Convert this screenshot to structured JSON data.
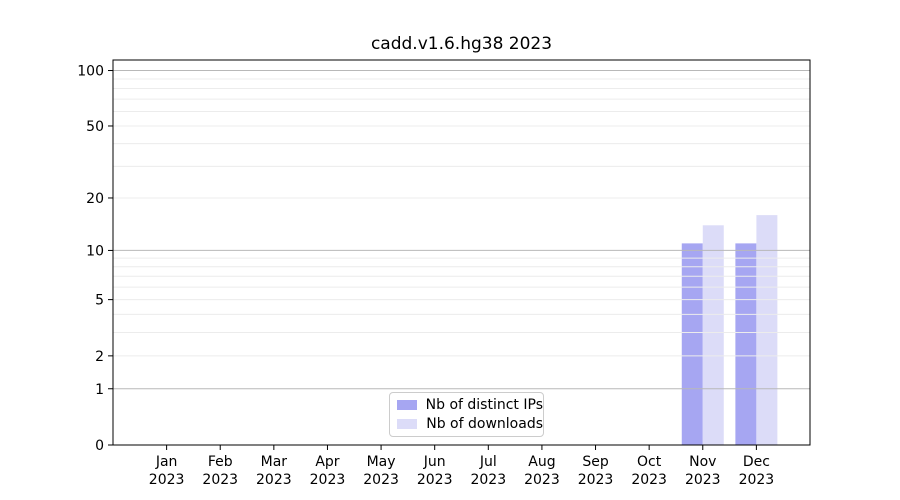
{
  "chart_data": {
    "type": "bar",
    "title": "cadd.v1.6.hg38 2023",
    "xlabel": "",
    "ylabel": "",
    "categories": [
      "Jan",
      "Feb",
      "Mar",
      "Apr",
      "May",
      "Jun",
      "Jul",
      "Aug",
      "Sep",
      "Oct",
      "Nov",
      "Dec"
    ],
    "year_line": "2023",
    "series": [
      {
        "name": "Nb of distinct IPs",
        "color": "#a6a6f2",
        "values": [
          0,
          0,
          0,
          0,
          0,
          0,
          0,
          0,
          0,
          0,
          11,
          11
        ]
      },
      {
        "name": "Nb of downloads",
        "color": "#dcdcf8",
        "values": [
          0,
          0,
          0,
          0,
          0,
          0,
          0,
          0,
          0,
          0,
          14,
          16
        ]
      }
    ],
    "yscale": "log1p",
    "ylim": [
      0,
      114
    ],
    "yticks": [
      0,
      1,
      2,
      5,
      10,
      20,
      50,
      100
    ],
    "grid": {
      "major_values": [
        1,
        10,
        100
      ],
      "minor_values": [
        2,
        3,
        4,
        5,
        6,
        7,
        8,
        9,
        20,
        30,
        40,
        50,
        60,
        70,
        80,
        90
      ],
      "major_color": "#b8b8b8",
      "minor_color": "#ececec"
    },
    "legend": {
      "position": "lower center",
      "entries": [
        "Nb of distinct IPs",
        "Nb of downloads"
      ]
    },
    "axis_color": "#000000",
    "text_color": "#000000",
    "background_color": "#ffffff"
  }
}
